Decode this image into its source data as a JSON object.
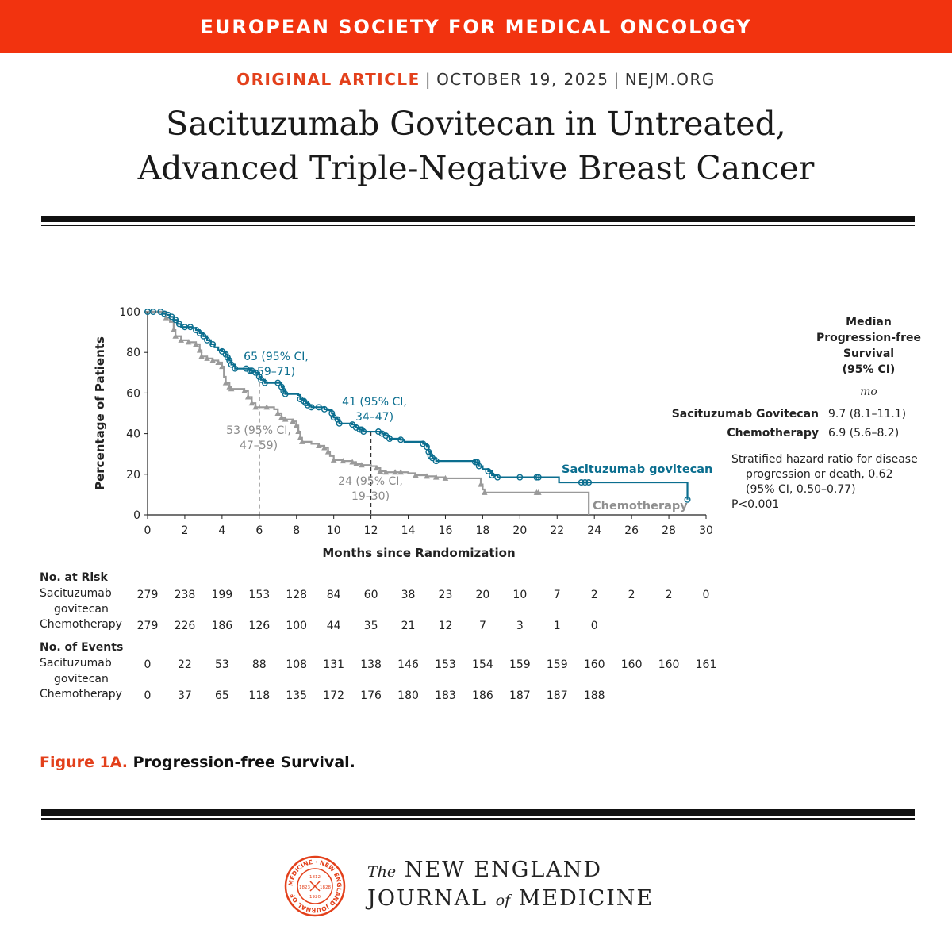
{
  "banner": {
    "text": "EUROPEAN SOCIETY FOR MEDICAL ONCOLOGY"
  },
  "meta": {
    "kind": "ORIGINAL ARTICLE",
    "date": "OCTOBER 19, 2025",
    "site": "NEJM.ORG"
  },
  "title": {
    "line1": "Sacituzumab Govitecan in Untreated,",
    "line2": "Advanced Triple-Negative Breast Cancer"
  },
  "caption": {
    "figure": "Figure 1A.",
    "text": "Progression-free Survival."
  },
  "logo": {
    "the": "The",
    "line1": "NEW ENGLAND",
    "line2a": "JOURNAL",
    "of": "of",
    "line2b": "MEDICINE",
    "seal": "MEDICINE · NEW ENGLAND JOURNAL OF",
    "seal_years": [
      "1812",
      "1823",
      "1828",
      "1920"
    ]
  },
  "colors": {
    "accent": "#f2330f",
    "sacituzumab": "#0b6e8f",
    "chemotherapy": "#9a9a9a"
  },
  "legend": {
    "heading": [
      "Median",
      "Progression-free",
      "Survival",
      "(95% CI)"
    ],
    "unit": "mo",
    "rows": [
      {
        "name": "Sacituzumab Govitecan",
        "value": "9.7 (8.1–11.1)"
      },
      {
        "name": "Chemotherapy",
        "value": "6.9 (5.6–8.2)"
      }
    ],
    "hr_lines": [
      "Stratified hazard ratio for disease",
      "progression or death, 0.62",
      "(95% CI, 0.50–0.77)",
      "P<0.001"
    ]
  },
  "chart_data": {
    "type": "line",
    "title": "",
    "xlabel": "Months since Randomization",
    "ylabel": "Percentage of Patients",
    "xlim": [
      0,
      30
    ],
    "ylim": [
      0,
      100
    ],
    "xticks": [
      0,
      2,
      4,
      6,
      8,
      10,
      12,
      14,
      16,
      18,
      20,
      22,
      24,
      26,
      28,
      30
    ],
    "yticks": [
      0,
      20,
      40,
      60,
      80,
      100
    ],
    "grid": false,
    "series": [
      {
        "name": "Sacituzumab govitecan",
        "points": [
          [
            0,
            100
          ],
          [
            0.5,
            100
          ],
          [
            0.8,
            99
          ],
          [
            1.0,
            98.5
          ],
          [
            1.2,
            97.5
          ],
          [
            1.4,
            96
          ],
          [
            1.6,
            94
          ],
          [
            1.8,
            92.5
          ],
          [
            2.4,
            92
          ],
          [
            2.6,
            91
          ],
          [
            2.8,
            89.5
          ],
          [
            3.0,
            88
          ],
          [
            3.2,
            86
          ],
          [
            3.4,
            84
          ],
          [
            3.6,
            82.5
          ],
          [
            3.8,
            81
          ],
          [
            4.0,
            80.5
          ],
          [
            4.2,
            79
          ],
          [
            4.3,
            77.5
          ],
          [
            4.4,
            76
          ],
          [
            4.5,
            74
          ],
          [
            4.7,
            72
          ],
          [
            5.5,
            71
          ],
          [
            5.8,
            70
          ],
          [
            6.0,
            68
          ],
          [
            6.1,
            66.5
          ],
          [
            6.3,
            65
          ],
          [
            7.0,
            65
          ],
          [
            7.2,
            63
          ],
          [
            7.3,
            61
          ],
          [
            7.4,
            59.5
          ],
          [
            8.1,
            59
          ],
          [
            8.2,
            57
          ],
          [
            8.4,
            56
          ],
          [
            8.5,
            55
          ],
          [
            8.6,
            54
          ],
          [
            8.8,
            53
          ],
          [
            9.5,
            52
          ],
          [
            9.7,
            51.5
          ],
          [
            9.9,
            50
          ],
          [
            10.0,
            48
          ],
          [
            10.2,
            47
          ],
          [
            10.3,
            45
          ],
          [
            11.0,
            44.5
          ],
          [
            11.2,
            43
          ],
          [
            11.4,
            42
          ],
          [
            11.6,
            41
          ],
          [
            12.4,
            41
          ],
          [
            12.6,
            40
          ],
          [
            12.8,
            39
          ],
          [
            13.0,
            37.5
          ],
          [
            13.6,
            37
          ],
          [
            13.8,
            36
          ],
          [
            14.8,
            35
          ],
          [
            15.0,
            33.5
          ],
          [
            15.1,
            31
          ],
          [
            15.2,
            29
          ],
          [
            15.3,
            28
          ],
          [
            15.5,
            26.5
          ],
          [
            17.6,
            26
          ],
          [
            17.8,
            24
          ],
          [
            18.0,
            22.5
          ],
          [
            18.3,
            21.5
          ],
          [
            18.5,
            19.5
          ],
          [
            18.8,
            18.5
          ],
          [
            20.0,
            18.5
          ],
          [
            22.0,
            18.5
          ],
          [
            22.1,
            16
          ],
          [
            28.9,
            16
          ],
          [
            29.0,
            7.5
          ]
        ],
        "values_at_ticks": {
          "6": 65,
          "12": 41
        }
      },
      {
        "name": "Chemotherapy",
        "points": [
          [
            0,
            100
          ],
          [
            1.0,
            97
          ],
          [
            1.2,
            95
          ],
          [
            1.4,
            91
          ],
          [
            1.5,
            88
          ],
          [
            1.8,
            86
          ],
          [
            2.2,
            85
          ],
          [
            2.6,
            84
          ],
          [
            2.8,
            81
          ],
          [
            2.9,
            78
          ],
          [
            3.2,
            77
          ],
          [
            3.5,
            76
          ],
          [
            3.8,
            75
          ],
          [
            4.0,
            73
          ],
          [
            4.1,
            68
          ],
          [
            4.2,
            65
          ],
          [
            4.4,
            63
          ],
          [
            4.5,
            62
          ],
          [
            5.2,
            61
          ],
          [
            5.4,
            58
          ],
          [
            5.6,
            55
          ],
          [
            5.8,
            53
          ],
          [
            6.4,
            53
          ],
          [
            6.8,
            52
          ],
          [
            7.0,
            50
          ],
          [
            7.2,
            48
          ],
          [
            7.4,
            47
          ],
          [
            7.8,
            46
          ],
          [
            8.0,
            44
          ],
          [
            8.1,
            41
          ],
          [
            8.2,
            38
          ],
          [
            8.3,
            36
          ],
          [
            8.8,
            35
          ],
          [
            9.2,
            34
          ],
          [
            9.5,
            33
          ],
          [
            9.7,
            31
          ],
          [
            9.8,
            29
          ],
          [
            10.0,
            27
          ],
          [
            10.5,
            26.5
          ],
          [
            11.0,
            26
          ],
          [
            11.2,
            25
          ],
          [
            11.5,
            24.5
          ],
          [
            12.0,
            24
          ],
          [
            12.3,
            23
          ],
          [
            12.5,
            21.5
          ],
          [
            12.8,
            21
          ],
          [
            14.0,
            20.5
          ],
          [
            14.4,
            19.5
          ],
          [
            15.0,
            19
          ],
          [
            15.5,
            18.5
          ],
          [
            16.0,
            18
          ],
          [
            17.8,
            18
          ],
          [
            17.9,
            15
          ],
          [
            18.0,
            12.5
          ],
          [
            18.1,
            11
          ],
          [
            20.0,
            11
          ],
          [
            20.9,
            11
          ],
          [
            21.0,
            11
          ],
          [
            23.6,
            11
          ],
          [
            23.7,
            0
          ]
        ],
        "values_at_ticks": {
          "6": 53,
          "12": 24
        }
      }
    ],
    "censor_marks": {
      "Sacituzumab govitecan": [
        0,
        0.3,
        0.7,
        0.9,
        1.1,
        1.3,
        1.5,
        1.7,
        2.0,
        2.3,
        2.6,
        2.8,
        3.0,
        3.2,
        3.5,
        4.0,
        4.2,
        4.3,
        4.4,
        4.5,
        4.7,
        5.3,
        5.5,
        5.6,
        5.8,
        6.0,
        6.1,
        6.3,
        7.0,
        7.2,
        7.3,
        7.4,
        8.2,
        8.4,
        8.5,
        8.6,
        8.8,
        9.2,
        9.5,
        9.9,
        10.0,
        10.2,
        10.3,
        11.0,
        11.2,
        11.4,
        11.5,
        11.6,
        12.4,
        12.6,
        12.8,
        13.0,
        13.6,
        14.8,
        15.0,
        15.1,
        15.2,
        15.3,
        15.5,
        17.6,
        17.7,
        17.8,
        18.3,
        18.5,
        18.8,
        20.0,
        20.9,
        21.0,
        23.3,
        23.5,
        23.7,
        29.0
      ],
      "Chemotherapy": [
        1.0,
        1.4,
        1.5,
        1.8,
        2.2,
        2.6,
        2.8,
        2.9,
        3.2,
        3.5,
        3.8,
        4.0,
        4.2,
        4.4,
        4.5,
        5.2,
        5.4,
        5.6,
        5.8,
        6.4,
        7.0,
        7.2,
        7.4,
        7.8,
        8.0,
        8.1,
        8.2,
        8.3,
        9.2,
        9.5,
        9.7,
        10.0,
        10.5,
        11.0,
        11.2,
        11.5,
        12.3,
        12.5,
        12.8,
        13.3,
        13.6,
        14.4,
        15.0,
        15.5,
        16.0,
        17.9,
        18.1,
        20.9,
        21.0
      ]
    },
    "annotations": [
      {
        "text": [
          "65 (95% CI,",
          "59–71)"
        ],
        "series": "Sacituzumab govitecan",
        "x": 6,
        "y": 65
      },
      {
        "text": [
          "41 (95% CI,",
          "34–47)"
        ],
        "series": "Sacituzumab govitecan",
        "x": 12,
        "y": 41
      },
      {
        "text": [
          "53 (95% CI,",
          "47–59)"
        ],
        "series": "Chemotherapy",
        "x": 6,
        "y": 53
      },
      {
        "text": [
          "24 (95% CI,",
          "19–30)"
        ],
        "series": "Chemotherapy",
        "x": 12,
        "y": 24
      }
    ],
    "series_labels": [
      "Sacituzumab govitecan",
      "Chemotherapy"
    ],
    "risk_table": {
      "at_risk_label": "No. at Risk",
      "events_label": "No. of Events",
      "rows_at_risk": [
        {
          "label": [
            "Sacituzumab",
            "govitecan"
          ],
          "values": [
            "279",
            "238",
            "199",
            "153",
            "128",
            "84",
            "60",
            "38",
            "23",
            "20",
            "10",
            "7",
            "2",
            "2",
            "2",
            "0"
          ]
        },
        {
          "label": [
            "Chemotherapy"
          ],
          "values": [
            "279",
            "226",
            "186",
            "126",
            "100",
            "44",
            "35",
            "21",
            "12",
            "7",
            "3",
            "1",
            "0"
          ]
        }
      ],
      "rows_events": [
        {
          "label": [
            "Sacituzumab",
            "govitecan"
          ],
          "values": [
            "0",
            "22",
            "53",
            "88",
            "108",
            "131",
            "138",
            "146",
            "153",
            "154",
            "159",
            "159",
            "160",
            "160",
            "160",
            "161"
          ]
        },
        {
          "label": [
            "Chemotherapy"
          ],
          "values": [
            "0",
            "37",
            "65",
            "118",
            "135",
            "172",
            "176",
            "180",
            "183",
            "186",
            "187",
            "187",
            "188"
          ]
        }
      ]
    }
  }
}
